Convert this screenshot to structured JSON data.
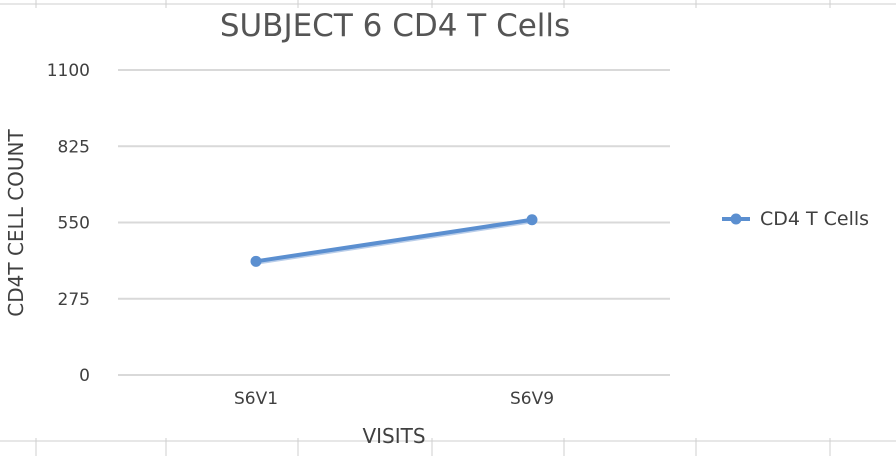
{
  "chart_data": {
    "type": "line",
    "title": "SUBJECT 6 CD4 T Cells",
    "xlabel": "VISITS",
    "ylabel": "CD4T CELL COUNT",
    "categories": [
      "S6V1",
      "S6V9"
    ],
    "series": [
      {
        "name": "CD4 T Cells",
        "values": [
          410,
          560
        ]
      }
    ],
    "ylim": [
      0,
      1100
    ],
    "yticks": [
      "0",
      "275",
      "550",
      "825",
      "1100"
    ],
    "grid": true,
    "legend_position": "right",
    "colors": {
      "series": "#5b8fd0",
      "grid": "#d9d9d9",
      "text": "#404040"
    }
  }
}
